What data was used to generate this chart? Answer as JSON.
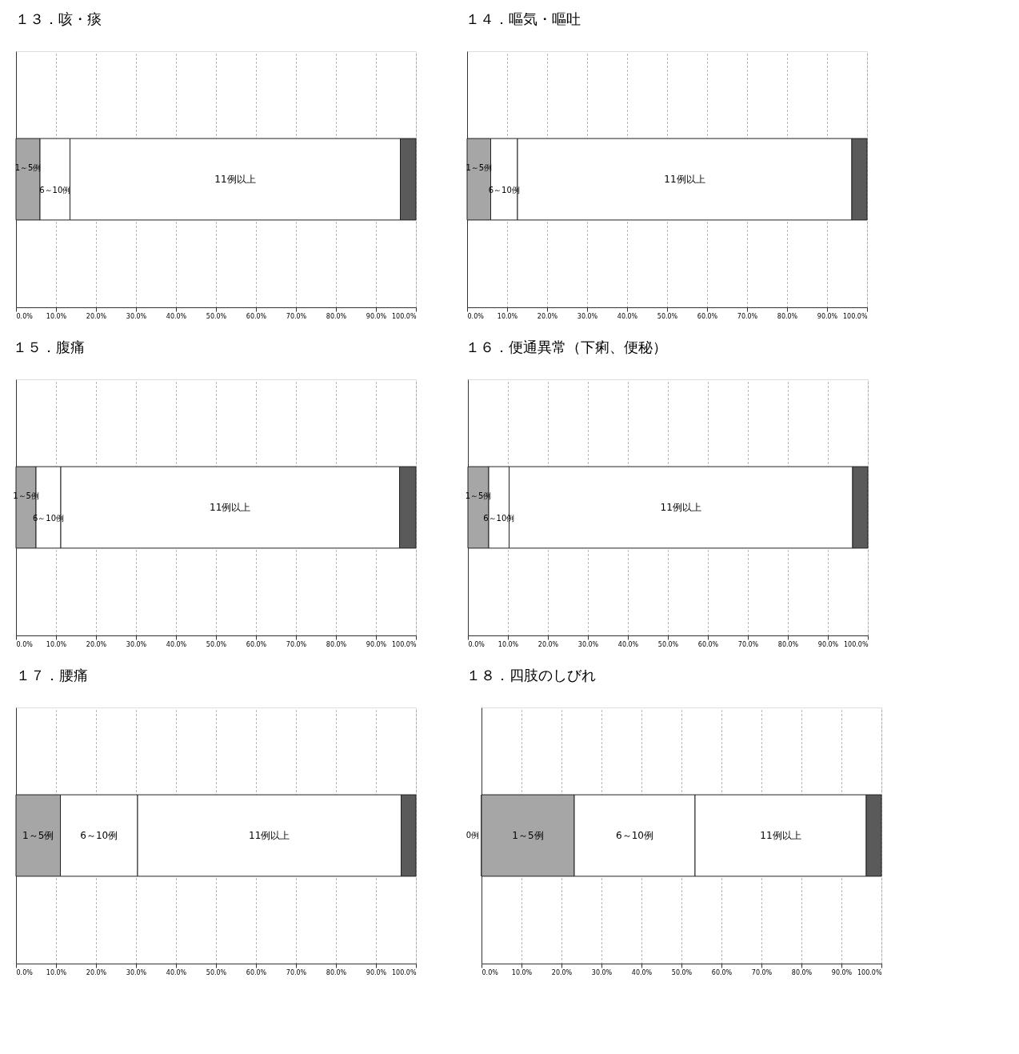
{
  "chart_data": [
    {
      "type": "bar",
      "orientation": "horizontal",
      "stacked": true,
      "title": "１３．咳・痰",
      "categories": [
        null
      ],
      "xlim": [
        0,
        100
      ],
      "xticks": [
        {
          "value": 0,
          "label": "0.0%"
        },
        {
          "value": 10,
          "label": "10.0%"
        },
        {
          "value": 20,
          "label": "20.0%"
        },
        {
          "value": 30,
          "label": "30.0%"
        },
        {
          "value": 40,
          "label": "40.0%"
        },
        {
          "value": 50,
          "label": "50.0%"
        },
        {
          "value": 60,
          "label": "60.0%"
        },
        {
          "value": 70,
          "label": "70.0%"
        },
        {
          "value": 80,
          "label": "80.0%"
        },
        {
          "value": 90,
          "label": "90.0%"
        },
        {
          "value": 100,
          "label": "100.0%"
        }
      ],
      "grid": "x",
      "legend": false,
      "tick_labels": "x",
      "series": [
        {
          "name": "1～5例",
          "color": "#a6a6a6",
          "values": [
            6.0
          ]
        },
        {
          "name": "6～10例",
          "color": "#ffffff",
          "values": [
            7.5
          ]
        },
        {
          "name": "11例以上",
          "color": "#ffffff",
          "values": [
            82.6
          ]
        },
        {
          "color": "#5a5a5a",
          "values": [
            3.9
          ]
        }
      ]
    },
    {
      "type": "bar",
      "orientation": "horizontal",
      "stacked": true,
      "title": "１４．嘔気・嘔吐",
      "categories": [
        null
      ],
      "xlim": [
        0,
        100
      ],
      "xticks": [
        {
          "value": 0,
          "label": "0.0%"
        },
        {
          "value": 10,
          "label": "10.0%"
        },
        {
          "value": 20,
          "label": "20.0%"
        },
        {
          "value": 30,
          "label": "30.0%"
        },
        {
          "value": 40,
          "label": "40.0%"
        },
        {
          "value": 50,
          "label": "50.0%"
        },
        {
          "value": 60,
          "label": "60.0%"
        },
        {
          "value": 70,
          "label": "70.0%"
        },
        {
          "value": 80,
          "label": "80.0%"
        },
        {
          "value": 90,
          "label": "90.0%"
        },
        {
          "value": 100,
          "label": "100.0%"
        }
      ],
      "grid": "x",
      "legend": false,
      "tick_labels": "x",
      "series": [
        {
          "name": "1～5例",
          "color": "#a6a6a6",
          "values": [
            5.9
          ]
        },
        {
          "name": "6～10例",
          "color": "#ffffff",
          "values": [
            6.7
          ]
        },
        {
          "name": "11例以上",
          "color": "#ffffff",
          "values": [
            83.6
          ]
        },
        {
          "color": "#5a5a5a",
          "values": [
            3.8
          ]
        }
      ]
    },
    {
      "type": "bar",
      "orientation": "horizontal",
      "stacked": true,
      "title": "１５．腹痛",
      "categories": [
        null
      ],
      "xlim": [
        0,
        100
      ],
      "xticks": [
        {
          "value": 0,
          "label": "0.0%"
        },
        {
          "value": 10,
          "label": "10.0%"
        },
        {
          "value": 20,
          "label": "20.0%"
        },
        {
          "value": 30,
          "label": "30.0%"
        },
        {
          "value": 40,
          "label": "40.0%"
        },
        {
          "value": 50,
          "label": "50.0%"
        },
        {
          "value": 60,
          "label": "60.0%"
        },
        {
          "value": 70,
          "label": "70.0%"
        },
        {
          "value": 80,
          "label": "80.0%"
        },
        {
          "value": 90,
          "label": "90.0%"
        },
        {
          "value": 100,
          "label": "100.0%"
        }
      ],
      "grid": "x",
      "legend": false,
      "tick_labels": "x",
      "series": [
        {
          "name": "1～5例",
          "color": "#a6a6a6",
          "values": [
            5.0
          ]
        },
        {
          "name": "6～10例",
          "color": "#ffffff",
          "values": [
            6.2
          ]
        },
        {
          "name": "11例以上",
          "color": "#ffffff",
          "values": [
            84.7
          ]
        },
        {
          "color": "#5a5a5a",
          "values": [
            4.1
          ]
        }
      ]
    },
    {
      "type": "bar",
      "orientation": "horizontal",
      "stacked": true,
      "title": "１６．便通異常（下痢、便秘）",
      "categories": [
        null
      ],
      "xlim": [
        0,
        100
      ],
      "xticks": [
        {
          "value": 0,
          "label": "0.0%"
        },
        {
          "value": 10,
          "label": "10.0%"
        },
        {
          "value": 20,
          "label": "20.0%"
        },
        {
          "value": 30,
          "label": "30.0%"
        },
        {
          "value": 40,
          "label": "40.0%"
        },
        {
          "value": 50,
          "label": "50.0%"
        },
        {
          "value": 60,
          "label": "60.0%"
        },
        {
          "value": 70,
          "label": "70.0%"
        },
        {
          "value": 80,
          "label": "80.0%"
        },
        {
          "value": 90,
          "label": "90.0%"
        },
        {
          "value": 100,
          "label": "100.0%"
        }
      ],
      "grid": "x",
      "legend": false,
      "tick_labels": "x",
      "series": [
        {
          "name": "1～5例",
          "color": "#a6a6a6",
          "values": [
            5.2
          ]
        },
        {
          "name": "6～10例",
          "color": "#ffffff",
          "values": [
            5.1
          ]
        },
        {
          "name": "11例以上",
          "color": "#ffffff",
          "values": [
            85.9
          ]
        },
        {
          "color": "#5a5a5a",
          "values": [
            3.8
          ]
        }
      ]
    },
    {
      "type": "bar",
      "orientation": "horizontal",
      "stacked": true,
      "title": "１７．腰痛",
      "categories": [
        null
      ],
      "xlim": [
        0,
        100
      ],
      "xticks": [
        {
          "value": 0,
          "label": "0.0%"
        },
        {
          "value": 10,
          "label": "10.0%"
        },
        {
          "value": 20,
          "label": "20.0%"
        },
        {
          "value": 30,
          "label": "30.0%"
        },
        {
          "value": 40,
          "label": "40.0%"
        },
        {
          "value": 50,
          "label": "50.0%"
        },
        {
          "value": 60,
          "label": "60.0%"
        },
        {
          "value": 70,
          "label": "70.0%"
        },
        {
          "value": 80,
          "label": "80.0%"
        },
        {
          "value": 90,
          "label": "90.0%"
        },
        {
          "value": 100,
          "label": "100.0%"
        }
      ],
      "grid": "x",
      "legend": false,
      "tick_labels": "x",
      "series": [
        {
          "name": "1～5例",
          "color": "#a6a6a6",
          "values": [
            11.1
          ]
        },
        {
          "name": "6～10例",
          "color": "#ffffff",
          "values": [
            19.3
          ]
        },
        {
          "name": "11例以上",
          "color": "#ffffff",
          "values": [
            65.9
          ]
        },
        {
          "color": "#5a5a5a",
          "values": [
            3.7
          ]
        }
      ]
    },
    {
      "type": "bar",
      "orientation": "horizontal",
      "stacked": true,
      "title": "１８．四肢のしびれ",
      "categories": [
        null
      ],
      "xlim": [
        0,
        100
      ],
      "xticks": [
        {
          "value": 0,
          "label": "0.0%"
        },
        {
          "value": 10,
          "label": "10.0%"
        },
        {
          "value": 20,
          "label": "20.0%"
        },
        {
          "value": 30,
          "label": "30.0%"
        },
        {
          "value": 40,
          "label": "40.0%"
        },
        {
          "value": 50,
          "label": "50.0%"
        },
        {
          "value": 60,
          "label": "60.0%"
        },
        {
          "value": 70,
          "label": "70.0%"
        },
        {
          "value": 80,
          "label": "80.0%"
        },
        {
          "value": 90,
          "label": "90.0%"
        },
        {
          "value": 100,
          "label": "100.0%"
        }
      ],
      "grid": "x",
      "legend": false,
      "tick_labels": "x",
      "series": [
        {
          "name": "0例",
          "values": [
            0
          ]
        },
        {
          "name": "1～5例",
          "color": "#a6a6a6",
          "values": [
            23.2
          ]
        },
        {
          "name": "6～10例",
          "color": "#ffffff",
          "values": [
            30.2
          ]
        },
        {
          "name": "11例以上",
          "color": "#ffffff",
          "values": [
            42.8
          ]
        },
        {
          "color": "#5a5a5a",
          "values": [
            3.8
          ]
        }
      ]
    }
  ]
}
